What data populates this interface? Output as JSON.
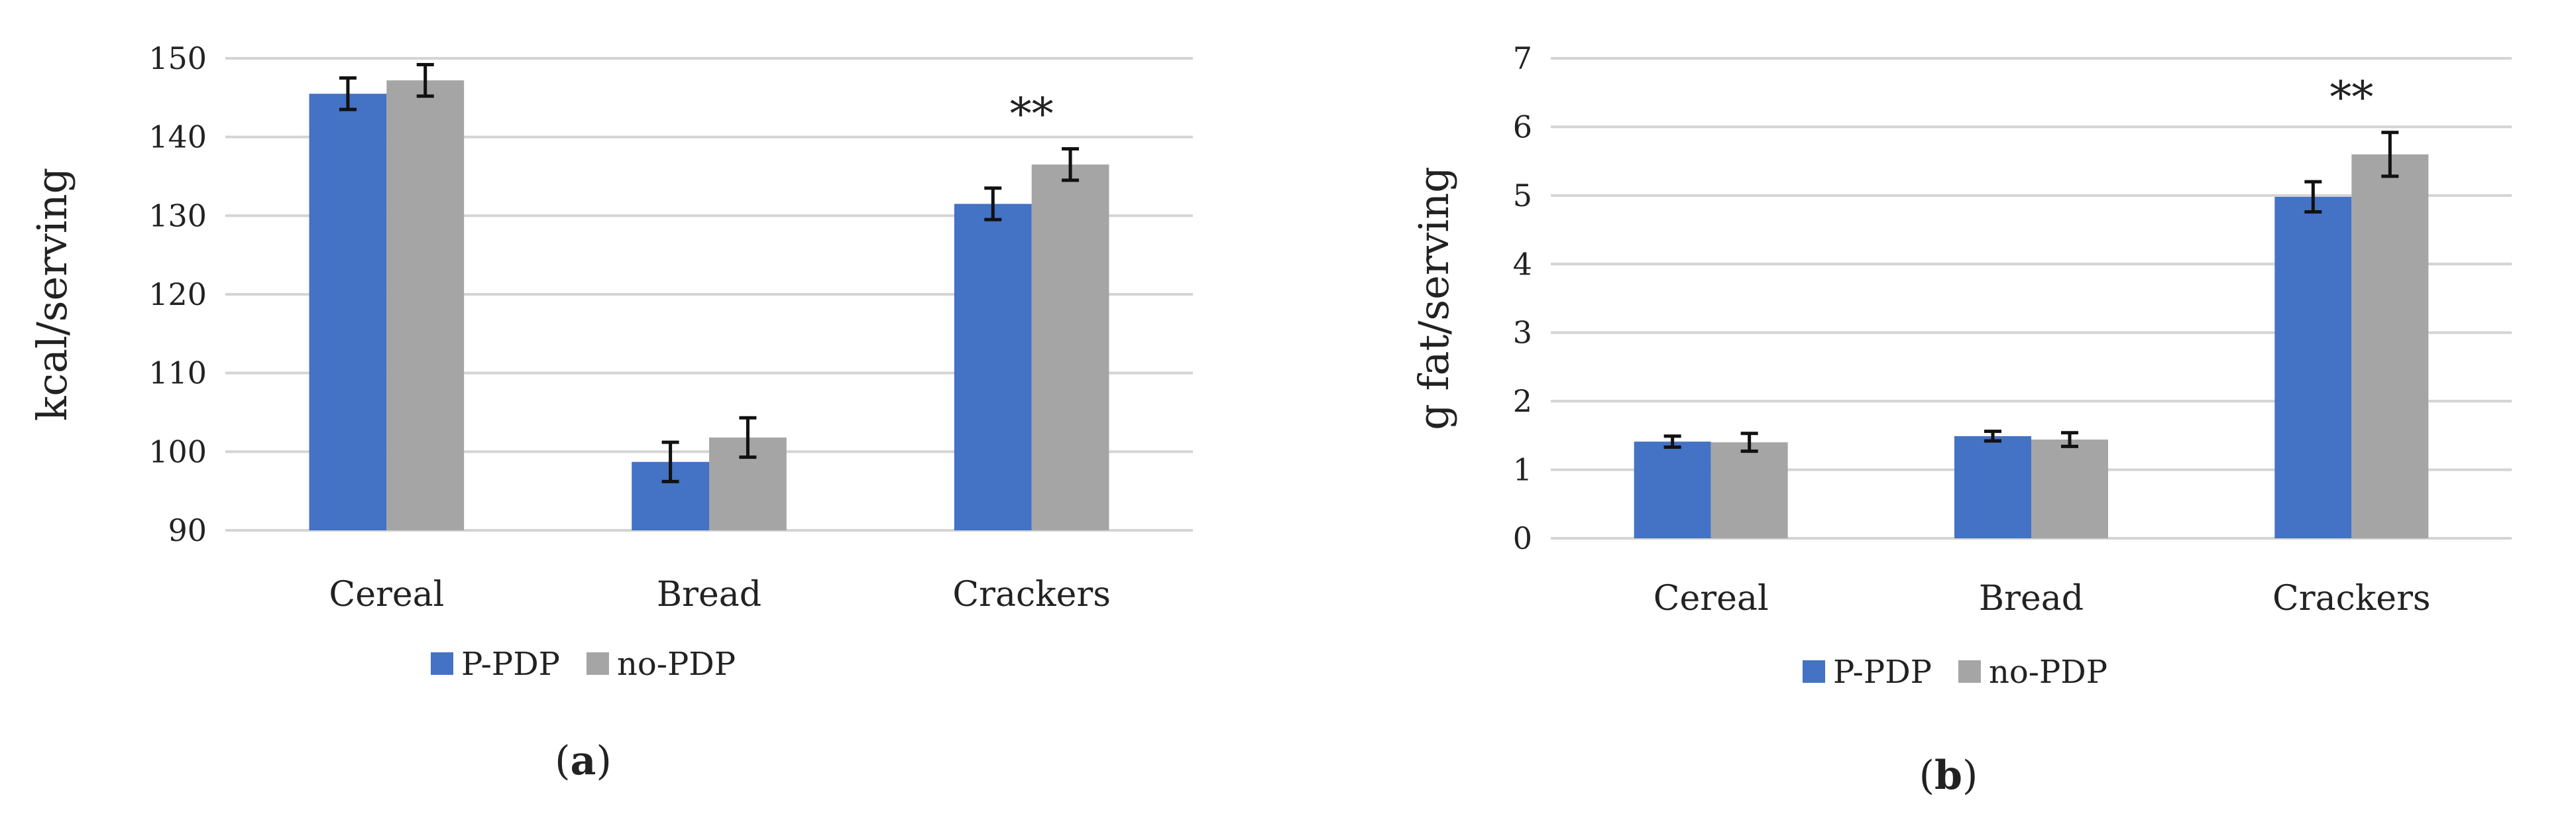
{
  "figure": {
    "panels": [
      {
        "label_prefix": "(",
        "label_letter": "a",
        "label_suffix": ")",
        "chart_data": {
          "type": "bar",
          "categories": [
            "Cereal",
            "Bread",
            "Crackers"
          ],
          "ylabel": "kcal/serving",
          "xlabel": "",
          "ylim": [
            90,
            150
          ],
          "yticks": [
            90,
            100,
            110,
            120,
            130,
            140,
            150
          ],
          "grid": true,
          "legend_position": "bottom",
          "series": [
            {
              "name": "P-PDP",
              "color": "#4472c4",
              "values": [
                145.5,
                98.7,
                131.5
              ],
              "errors": [
                2.0,
                2.5,
                2.0
              ]
            },
            {
              "name": "no-PDP",
              "color": "#a5a5a5",
              "values": [
                147.2,
                101.8,
                136.5
              ],
              "errors": [
                2.0,
                2.5,
                2.0
              ]
            }
          ],
          "annotations": [
            {
              "category": "Crackers",
              "text": "**"
            }
          ]
        }
      },
      {
        "label_prefix": "(",
        "label_letter": "b",
        "label_suffix": ")",
        "chart_data": {
          "type": "bar",
          "categories": [
            "Cereal",
            "Bread",
            "Crackers"
          ],
          "ylabel": "g fat/serving",
          "xlabel": "",
          "ylim": [
            0,
            7
          ],
          "yticks": [
            0,
            1,
            2,
            3,
            4,
            5,
            6,
            7
          ],
          "grid": true,
          "legend_position": "bottom",
          "series": [
            {
              "name": "P-PDP",
              "color": "#4472c4",
              "values": [
                1.41,
                1.49,
                4.98
              ],
              "errors": [
                0.08,
                0.07,
                0.22
              ]
            },
            {
              "name": "no-PDP",
              "color": "#a5a5a5",
              "values": [
                1.4,
                1.44,
                5.6
              ],
              "errors": [
                0.13,
                0.1,
                0.32
              ]
            }
          ],
          "annotations": [
            {
              "category": "Crackers",
              "text": "**"
            }
          ]
        }
      }
    ]
  }
}
